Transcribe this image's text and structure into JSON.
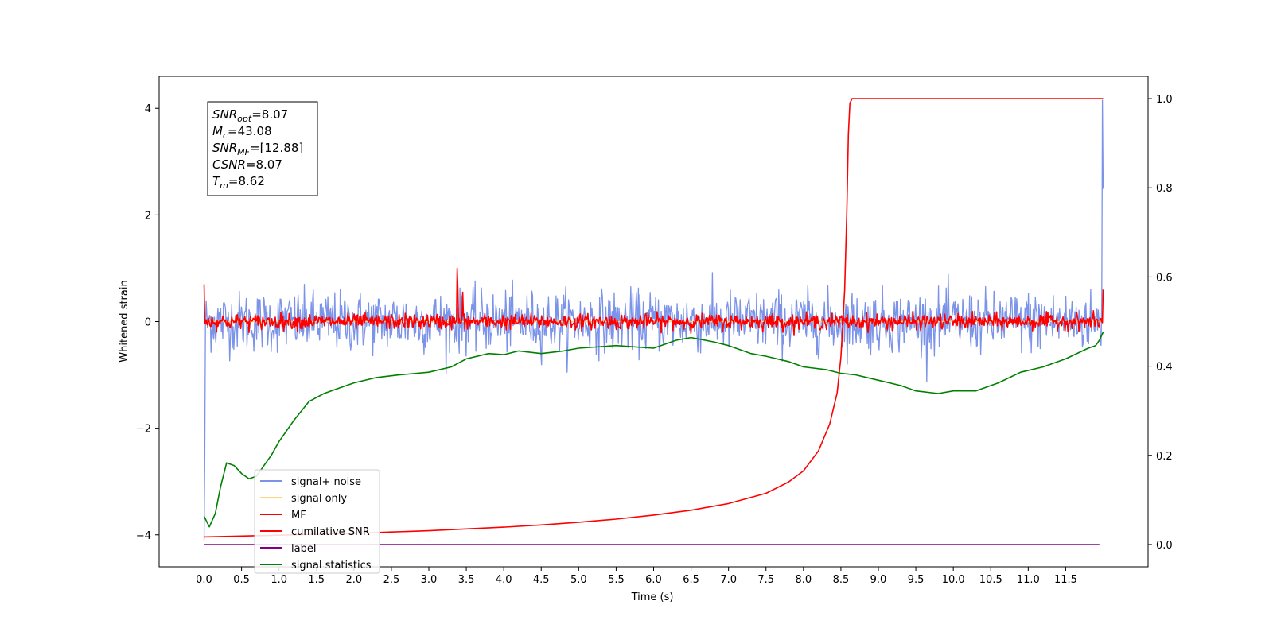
{
  "chart_data": {
    "type": "line",
    "xlabel": "Time (s)",
    "ylabel": "Whitened strain",
    "xlim": [
      -0.6,
      12.6
    ],
    "ylim_left": [
      -4.6,
      4.6
    ],
    "ylim_right": [
      -0.05,
      1.05
    ],
    "x_ticks": [
      "0.0",
      "0.5",
      "1.0",
      "1.5",
      "2.0",
      "2.5",
      "3.0",
      "3.5",
      "4.0",
      "4.5",
      "5.0",
      "5.5",
      "6.0",
      "6.5",
      "7.0",
      "7.5",
      "8.0",
      "8.5",
      "9.0",
      "9.5",
      "10.0",
      "10.5",
      "11.0",
      "11.5"
    ],
    "y_ticks_left": [
      "−4",
      "−2",
      "0",
      "2",
      "4"
    ],
    "y_ticks_right": [
      "0.0",
      "0.2",
      "0.4",
      "0.6",
      "0.8",
      "1.0"
    ],
    "grid": false,
    "legend_placement": "lower-left",
    "stats_box": [
      {
        "symbol": "SNR",
        "sub": "opt",
        "value": "=8.07"
      },
      {
        "symbol": "M",
        "sub": "c",
        "value": "=43.08"
      },
      {
        "symbol": "SNR",
        "sub": "MF",
        "value": "=[12.88]"
      },
      {
        "symbol": "CSNR",
        "sub": "",
        "value": "=8.07"
      },
      {
        "symbol": "T",
        "sub": "m",
        "value": "=8.62"
      }
    ],
    "series": [
      {
        "name": "signal+ noise",
        "color": "#7b93e8",
        "axis": "left",
        "style": "noise",
        "x_range": [
          0.0,
          12.0
        ],
        "amplitude_rms": 0.28,
        "peaks": [
          {
            "x": 0.0,
            "y": -4.1
          },
          {
            "x": 11.99,
            "y": 4.15
          }
        ]
      },
      {
        "name": "signal only",
        "color": "#ffd480",
        "axis": "left",
        "x": [
          0.0,
          12.0
        ],
        "y": [
          0.0,
          0.0
        ]
      },
      {
        "name": "MF",
        "color": "#ff0000",
        "axis": "left",
        "style": "noise",
        "x_range": [
          0.0,
          12.0
        ],
        "amplitude_rms": 0.07,
        "peaks": [
          {
            "x": 0.0,
            "y": 0.7
          },
          {
            "x": 3.38,
            "y": 1.0
          },
          {
            "x": 3.45,
            "y": 0.55
          },
          {
            "x": 12.0,
            "y": 0.6
          }
        ]
      },
      {
        "name": "cumilative SNR",
        "color": "#ff0000",
        "axis": "right",
        "x": [
          0.0,
          0.5,
          1.0,
          1.5,
          2.0,
          2.5,
          3.0,
          3.5,
          4.0,
          4.5,
          5.0,
          5.5,
          6.0,
          6.5,
          7.0,
          7.5,
          7.8,
          8.0,
          8.2,
          8.35,
          8.45,
          8.5,
          8.55,
          8.58,
          8.6,
          8.62,
          8.65,
          12.0
        ],
        "y": [
          0.017,
          0.019,
          0.021,
          0.023,
          0.025,
          0.028,
          0.031,
          0.035,
          0.039,
          0.044,
          0.05,
          0.057,
          0.066,
          0.077,
          0.092,
          0.115,
          0.14,
          0.165,
          0.21,
          0.27,
          0.34,
          0.42,
          0.57,
          0.75,
          0.92,
          0.99,
          1.0,
          1.0
        ]
      },
      {
        "name": "label",
        "color": "#800080",
        "axis": "right",
        "x": [
          0.0,
          11.95
        ],
        "y": [
          0.0,
          0.0
        ]
      },
      {
        "name": "signal statistics",
        "color": "#008000",
        "axis": "left",
        "x": [
          0.0,
          0.07,
          0.15,
          0.22,
          0.3,
          0.4,
          0.5,
          0.6,
          0.7,
          0.8,
          0.9,
          1.0,
          1.2,
          1.4,
          1.6,
          1.8,
          2.0,
          2.3,
          2.6,
          3.0,
          3.3,
          3.5,
          3.8,
          4.0,
          4.2,
          4.5,
          4.8,
          5.0,
          5.5,
          6.0,
          6.3,
          6.5,
          6.8,
          7.0,
          7.3,
          7.5,
          7.8,
          8.0,
          8.3,
          8.5,
          8.7,
          9.0,
          9.3,
          9.5,
          9.8,
          10.0,
          10.3,
          10.6,
          10.9,
          11.2,
          11.5,
          11.8,
          11.9,
          11.95,
          12.0
        ],
        "y": [
          -3.65,
          -3.85,
          -3.6,
          -3.1,
          -2.65,
          -2.7,
          -2.85,
          -2.95,
          -2.9,
          -2.7,
          -2.5,
          -2.25,
          -1.85,
          -1.5,
          -1.35,
          -1.25,
          -1.15,
          -1.05,
          -1.0,
          -0.95,
          -0.85,
          -0.7,
          -0.6,
          -0.62,
          -0.55,
          -0.6,
          -0.55,
          -0.5,
          -0.45,
          -0.5,
          -0.35,
          -0.3,
          -0.38,
          -0.45,
          -0.6,
          -0.65,
          -0.75,
          -0.85,
          -0.9,
          -0.97,
          -1.0,
          -1.1,
          -1.2,
          -1.3,
          -1.35,
          -1.3,
          -1.3,
          -1.15,
          -0.95,
          -0.85,
          -0.7,
          -0.5,
          -0.45,
          -0.35,
          -0.2
        ]
      }
    ]
  }
}
